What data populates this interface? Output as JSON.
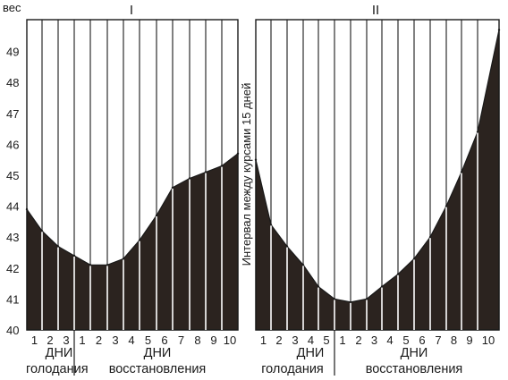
{
  "chart_data": {
    "type": "area",
    "ylabel": "вес",
    "ylim": [
      40,
      50
    ],
    "yticks": [
      "40",
      "41",
      "42",
      "43",
      "44",
      "45",
      "46",
      "47",
      "48",
      "49"
    ],
    "grid": true,
    "colors": {
      "fill": "#2b231f",
      "lines": "#1a1a1a",
      "background": "#ffffff"
    },
    "interval_note": "Интервал между курсами 15 дней",
    "panels": [
      {
        "title": "I",
        "phases": [
          {
            "label": "голодания",
            "days_label": "",
            "days": [
              "1",
              "2",
              "3"
            ]
          },
          {
            "label": "восстановления",
            "days_label": "ДНИ",
            "days": [
              "1",
              "2",
              "3",
              "4",
              "5",
              "6",
              "7",
              "8",
              "9",
              "10"
            ]
          }
        ],
        "x": [
          0,
          1,
          2,
          3,
          4,
          5,
          6,
          7,
          8,
          9,
          10,
          11,
          12,
          13
        ],
        "values": [
          43.9,
          43.2,
          42.7,
          42.4,
          42.1,
          42.1,
          42.3,
          42.9,
          43.7,
          44.6,
          44.9,
          45.1,
          45.3,
          45.7
        ]
      },
      {
        "title": "II",
        "phases": [
          {
            "label": "голодания",
            "days_label": "ДНИ",
            "days": [
              "1",
              "2",
              "3",
              "4",
              "5"
            ]
          },
          {
            "label": "восстановления",
            "days_label": "ДНИ",
            "days": [
              "1",
              "2",
              "3",
              "4",
              "5",
              "6",
              "7",
              "8",
              "9",
              "10"
            ]
          }
        ],
        "x": [
          0,
          1,
          2,
          3,
          4,
          5,
          6,
          7,
          8,
          9,
          10,
          11,
          12,
          13,
          14,
          15
        ],
        "values": [
          45.5,
          43.4,
          42.7,
          42.1,
          41.4,
          41.0,
          40.9,
          41.0,
          41.4,
          41.8,
          42.3,
          43.0,
          44.0,
          45.1,
          46.4,
          49.7
        ]
      }
    ]
  }
}
